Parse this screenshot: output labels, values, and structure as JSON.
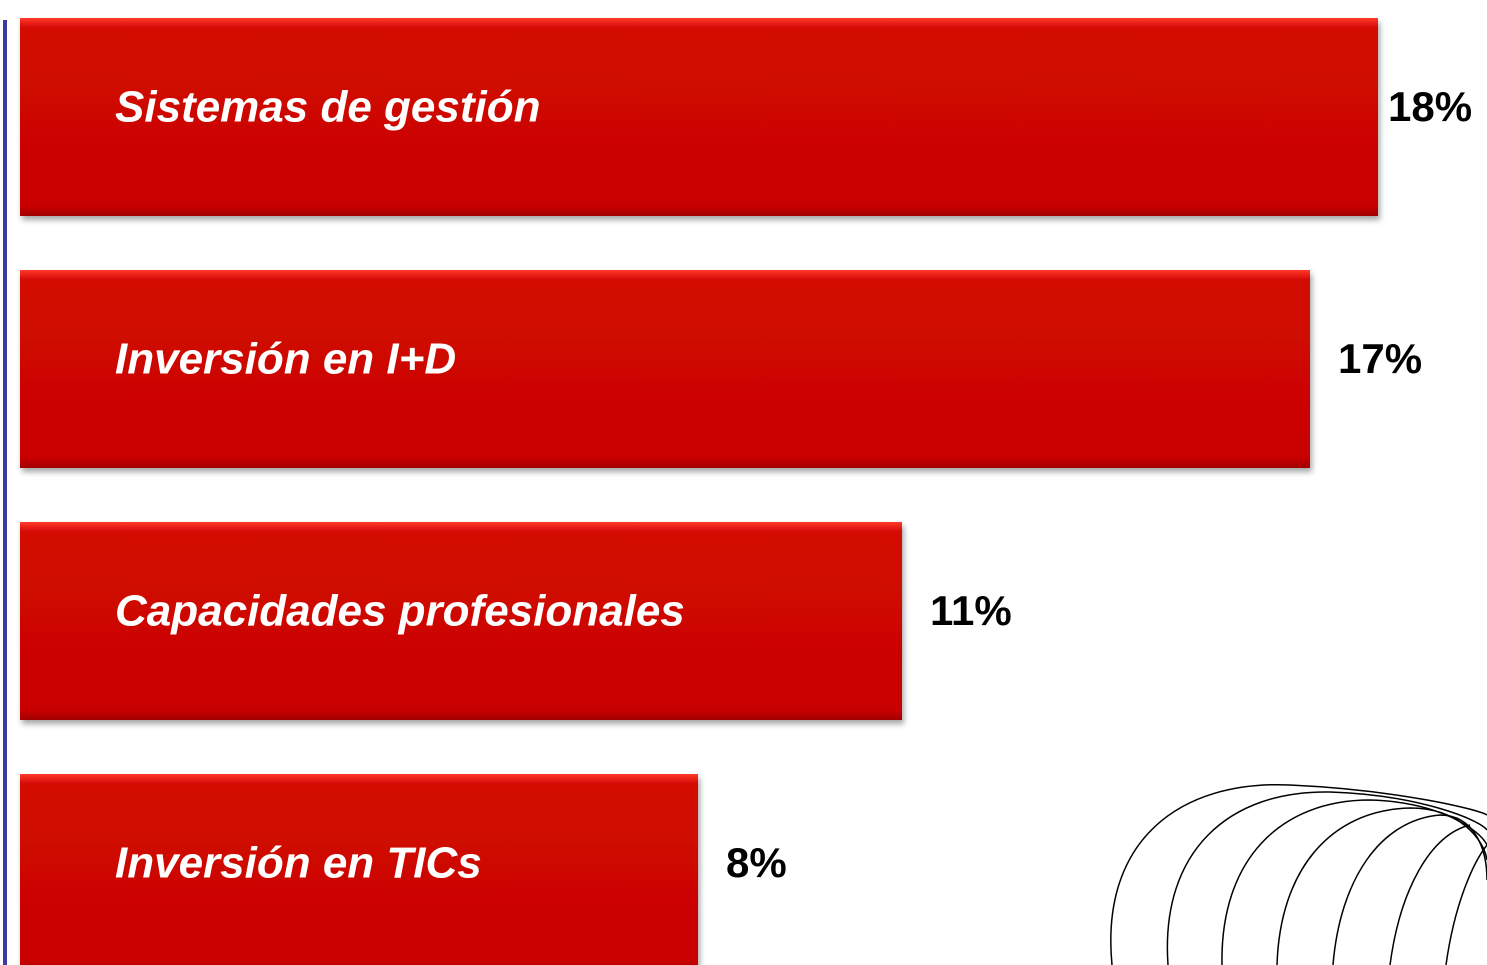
{
  "chart_data": {
    "type": "bar",
    "orientation": "horizontal",
    "categories": [
      "Sistemas de gestión",
      "Inversión en I+D",
      "Capacidades profesionales",
      "Inversión en TICs"
    ],
    "values": [
      18,
      17,
      11,
      8
    ],
    "value_labels": [
      "18%",
      "17%",
      "11%",
      "8%"
    ],
    "color": "#c80505"
  }
}
